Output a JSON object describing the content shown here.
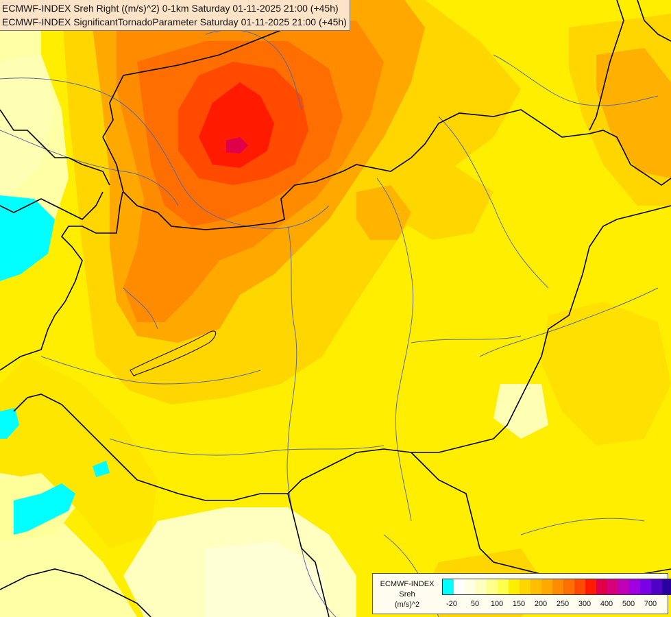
{
  "titles": [
    "ECMWF-INDEX Sreh Right ((m/s)^2) 0-1km Saturday 01-11-2025 21:00 (+45h)",
    "ECMWF-INDEX SignificantTornadoParameter Saturday 01-11-2025 21:00 (+45h)"
  ],
  "legend": {
    "line1": "ECMWF-INDEX",
    "line2": "Sreh",
    "line3": "(m/s)^2",
    "colors": [
      "#00ffff",
      "#ffffff",
      "#ffffe6",
      "#ffffbf",
      "#ffff8c",
      "#ffff4d",
      "#ffee00",
      "#ffd600",
      "#ffbe00",
      "#ffa800",
      "#ff8c00",
      "#ff6e00",
      "#ff4a00",
      "#ff1a00",
      "#e0004a",
      "#d6007a",
      "#c000b4",
      "#a000e0",
      "#7a00e6",
      "#5000c8",
      "#2a00a0",
      "#000080"
    ],
    "ticks": [
      "-20",
      "50",
      "100",
      "150",
      "200",
      "250",
      "300",
      "400",
      "500",
      "700"
    ]
  },
  "palette": {
    "background": "#ffff7f",
    "yellow": "#ffee00",
    "gold": "#ffd600",
    "orange": "#ffa800",
    "dark_orange": "#ff8c00",
    "red_orange": "#ff6e00",
    "red": "#ff1a00",
    "magenta": "#e0004a",
    "cyan": "#00ffff",
    "border": "#000000",
    "river": "#5a6aa0"
  }
}
